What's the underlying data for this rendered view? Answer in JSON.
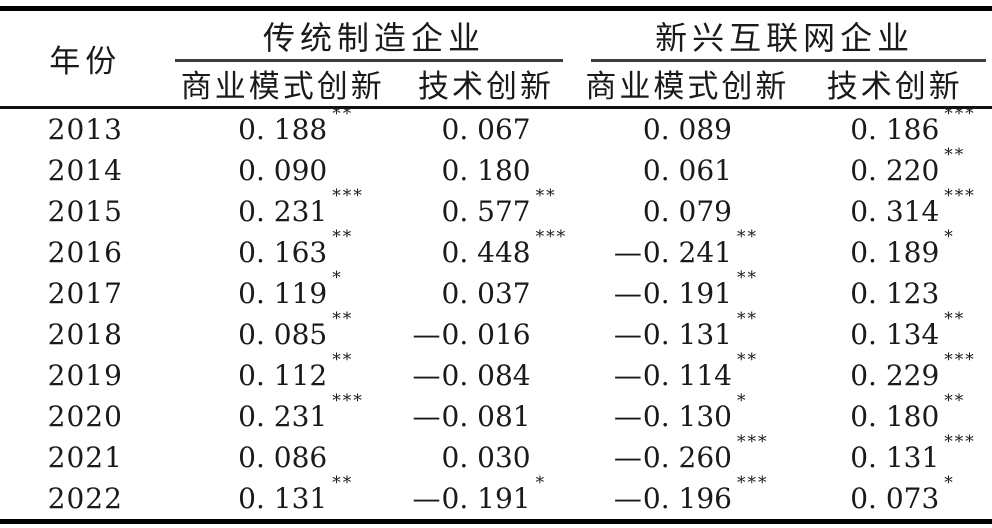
{
  "page": {
    "background_color": "#ffffff",
    "ink_color": "#1a1a1a",
    "rule_color": "#000000"
  },
  "table": {
    "year_header": "年份",
    "groups": [
      {
        "label": "传统制造企业",
        "subcolumns": [
          "商业模式创新",
          "技术创新"
        ]
      },
      {
        "label": "新兴互联网企业",
        "subcolumns": [
          "商业模式创新",
          "技术创新"
        ]
      }
    ],
    "rows": [
      {
        "year": "2013",
        "cells": [
          {
            "v": "0.188",
            "s": "**"
          },
          {
            "v": "0.067",
            "s": ""
          },
          {
            "v": "0.089",
            "s": ""
          },
          {
            "v": "0.186",
            "s": "***"
          }
        ]
      },
      {
        "year": "2014",
        "cells": [
          {
            "v": "0.090",
            "s": ""
          },
          {
            "v": "0.180",
            "s": ""
          },
          {
            "v": "0.061",
            "s": ""
          },
          {
            "v": "0.220",
            "s": "**"
          }
        ]
      },
      {
        "year": "2015",
        "cells": [
          {
            "v": "0.231",
            "s": "***"
          },
          {
            "v": "0.577",
            "s": "**"
          },
          {
            "v": "0.079",
            "s": ""
          },
          {
            "v": "0.314",
            "s": "***"
          }
        ]
      },
      {
        "year": "2016",
        "cells": [
          {
            "v": "0.163",
            "s": "**"
          },
          {
            "v": "0.448",
            "s": "***"
          },
          {
            "v": "-0.241",
            "s": "**"
          },
          {
            "v": "0.189",
            "s": "*"
          }
        ]
      },
      {
        "year": "2017",
        "cells": [
          {
            "v": "0.119",
            "s": "*"
          },
          {
            "v": "0.037",
            "s": ""
          },
          {
            "v": "-0.191",
            "s": "**"
          },
          {
            "v": "0.123",
            "s": ""
          }
        ]
      },
      {
        "year": "2018",
        "cells": [
          {
            "v": "0.085",
            "s": "**"
          },
          {
            "v": "-0.016",
            "s": ""
          },
          {
            "v": "-0.131",
            "s": "**"
          },
          {
            "v": "0.134",
            "s": "**"
          }
        ]
      },
      {
        "year": "2019",
        "cells": [
          {
            "v": "0.112",
            "s": "**"
          },
          {
            "v": "-0.084",
            "s": ""
          },
          {
            "v": "-0.114",
            "s": "**"
          },
          {
            "v": "0.229",
            "s": "***"
          }
        ]
      },
      {
        "year": "2020",
        "cells": [
          {
            "v": "0.231",
            "s": "***"
          },
          {
            "v": "-0.081",
            "s": ""
          },
          {
            "v": "-0.130",
            "s": "*"
          },
          {
            "v": "0.180",
            "s": "**"
          }
        ]
      },
      {
        "year": "2021",
        "cells": [
          {
            "v": "0.086",
            "s": ""
          },
          {
            "v": "0.030",
            "s": ""
          },
          {
            "v": "-0.260",
            "s": "***"
          },
          {
            "v": "0.131",
            "s": "***"
          }
        ]
      },
      {
        "year": "2022",
        "cells": [
          {
            "v": "0.131",
            "s": "**"
          },
          {
            "v": "-0.191",
            "s": "*"
          },
          {
            "v": "-0.196",
            "s": "***"
          },
          {
            "v": "0.073",
            "s": "*"
          }
        ]
      }
    ],
    "minus_glyph": "—"
  }
}
